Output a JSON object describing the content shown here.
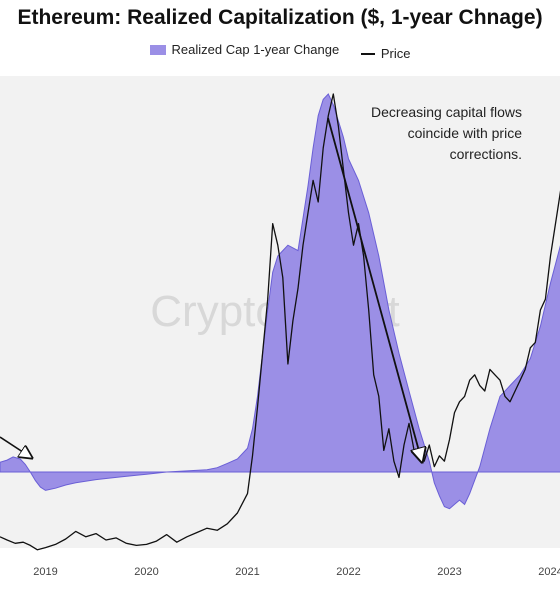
{
  "chart_data": {
    "type": "area",
    "title": "Ethereum: Realized Capitalization ($, 1-year Chnage)",
    "legend": {
      "placement": "top-center",
      "items": [
        {
          "label": "Realized Cap 1-year Change",
          "kind": "area",
          "color": "#9b8fe6"
        },
        {
          "label": "Price",
          "kind": "line",
          "color": "#111111"
        }
      ]
    },
    "xticks": [
      "2019",
      "2020",
      "2021",
      "2022",
      "2023",
      "2024"
    ],
    "xrange": [
      2018.55,
      2024.5
    ],
    "y_axis_labels_visible": false,
    "grid": false,
    "watermark": "CryptoQuant",
    "annotation": "Decreasing capital flows\ncoincide with price\ncorrections.",
    "series": [
      {
        "name": "Realized Cap 1-year Change",
        "color": "#9b8fe6",
        "edge_color": "#6a5fd6",
        "baseline": 0,
        "x": [
          2018.55,
          2018.62,
          2018.68,
          2018.75,
          2018.8,
          2018.85,
          2018.9,
          2018.95,
          2019.0,
          2019.05,
          2019.1,
          2019.2,
          2019.3,
          2019.5,
          2019.7,
          2019.9,
          2020.0,
          2020.2,
          2020.4,
          2020.6,
          2020.7,
          2020.8,
          2020.9,
          2021.0,
          2021.05,
          2021.1,
          2021.15,
          2021.2,
          2021.25,
          2021.3,
          2021.35,
          2021.4,
          2021.5,
          2021.6,
          2021.65,
          2021.7,
          2021.75,
          2021.8,
          2021.85,
          2021.9,
          2021.95,
          2022.0,
          2022.1,
          2022.2,
          2022.3,
          2022.4,
          2022.5,
          2022.6,
          2022.7,
          2022.8,
          2022.85,
          2022.9,
          2022.95,
          2023.0,
          2023.05,
          2023.1,
          2023.15,
          2023.2,
          2023.3,
          2023.4,
          2023.5,
          2023.6,
          2023.7,
          2023.8,
          2023.9,
          2024.0,
          2024.1,
          2024.2,
          2024.3,
          2024.4,
          2024.5
        ],
        "y": [
          9,
          11,
          14,
          12,
          7,
          0,
          -8,
          -14,
          -17,
          -16,
          -15,
          -12,
          -10,
          -7,
          -5,
          -3,
          -2,
          0,
          1,
          2,
          4,
          8,
          12,
          22,
          40,
          70,
          110,
          150,
          185,
          200,
          205,
          210,
          205,
          265,
          300,
          330,
          345,
          350,
          340,
          325,
          310,
          290,
          270,
          240,
          200,
          150,
          110,
          75,
          40,
          10,
          -10,
          -22,
          -32,
          -34,
          -30,
          -26,
          -30,
          -20,
          5,
          40,
          70,
          80,
          90,
          105,
          135,
          175,
          210,
          240,
          290,
          330,
          340
        ]
      },
      {
        "name": "Price",
        "color": "#111111",
        "x": [
          2018.55,
          2018.62,
          2018.7,
          2018.78,
          2018.85,
          2018.92,
          2019.0,
          2019.1,
          2019.2,
          2019.3,
          2019.4,
          2019.5,
          2019.6,
          2019.7,
          2019.8,
          2019.9,
          2020.0,
          2020.1,
          2020.2,
          2020.3,
          2020.4,
          2020.5,
          2020.6,
          2020.7,
          2020.8,
          2020.9,
          2021.0,
          2021.05,
          2021.1,
          2021.15,
          2021.2,
          2021.25,
          2021.3,
          2021.35,
          2021.4,
          2021.45,
          2021.5,
          2021.55,
          2021.6,
          2021.65,
          2021.7,
          2021.75,
          2021.8,
          2021.85,
          2021.9,
          2021.95,
          2022.0,
          2022.05,
          2022.1,
          2022.15,
          2022.2,
          2022.25,
          2022.3,
          2022.35,
          2022.4,
          2022.45,
          2022.5,
          2022.55,
          2022.6,
          2022.65,
          2022.7,
          2022.75,
          2022.8,
          2022.85,
          2022.9,
          2022.95,
          2023.0,
          2023.05,
          2023.1,
          2023.15,
          2023.2,
          2023.25,
          2023.3,
          2023.35,
          2023.4,
          2023.45,
          2023.5,
          2023.55,
          2023.6,
          2023.65,
          2023.7,
          2023.75,
          2023.8,
          2023.85,
          2023.9,
          2023.95,
          2024.0,
          2024.05,
          2024.1,
          2024.15,
          2024.2,
          2024.25,
          2024.3,
          2024.35,
          2024.4,
          2024.45,
          2024.5
        ],
        "y": [
          -60,
          -63,
          -66,
          -65,
          -68,
          -72,
          -70,
          -67,
          -62,
          -55,
          -60,
          -57,
          -63,
          -61,
          -66,
          -68,
          -67,
          -64,
          -58,
          -65,
          -60,
          -56,
          -52,
          -54,
          -48,
          -38,
          -20,
          15,
          60,
          110,
          160,
          230,
          210,
          180,
          100,
          140,
          170,
          210,
          240,
          270,
          250,
          300,
          330,
          350,
          320,
          280,
          240,
          210,
          230,
          200,
          150,
          90,
          70,
          20,
          40,
          10,
          -5,
          25,
          45,
          20,
          15,
          10,
          25,
          5,
          15,
          10,
          30,
          55,
          65,
          70,
          85,
          90,
          80,
          75,
          95,
          90,
          85,
          70,
          65,
          75,
          85,
          95,
          115,
          120,
          150,
          160,
          200,
          230,
          260,
          290,
          300,
          280,
          270,
          250,
          260,
          280,
          290
        ]
      }
    ]
  }
}
